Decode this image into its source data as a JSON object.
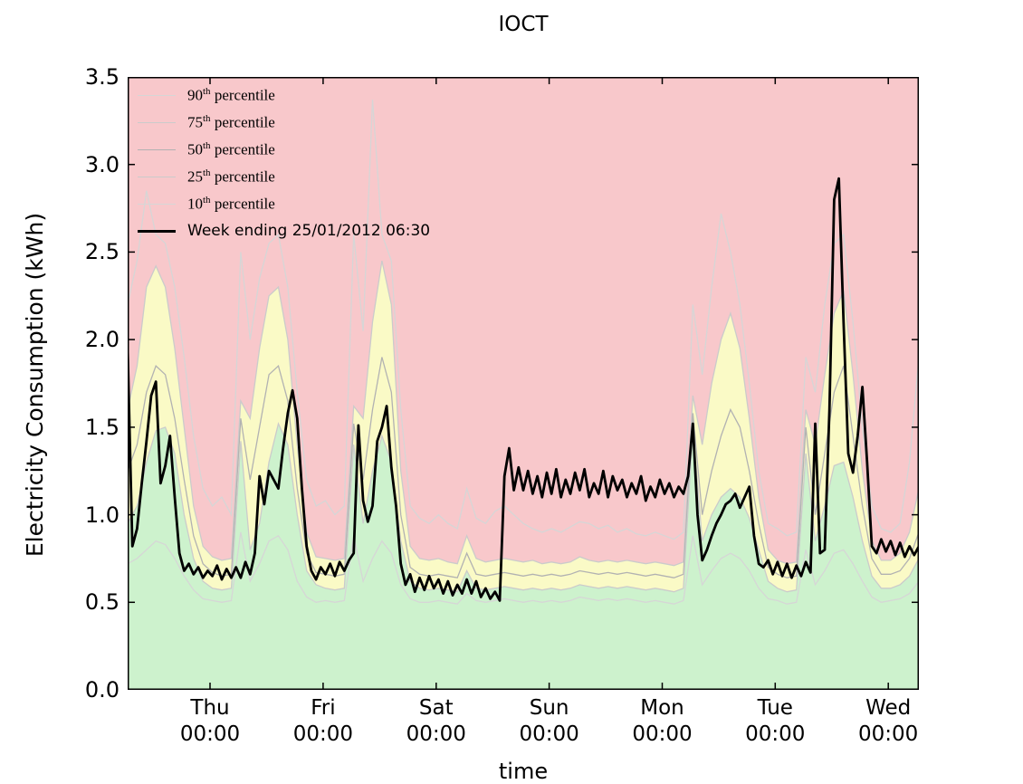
{
  "title": "IOCT",
  "axes": {
    "ylabel": "Electricity Consumption (kWh)",
    "xlabel": "time",
    "y_ticks": [
      {
        "v": 0.0,
        "label": "0.0"
      },
      {
        "v": 0.5,
        "label": "0.5"
      },
      {
        "v": 1.0,
        "label": "1.0"
      },
      {
        "v": 1.5,
        "label": "1.5"
      },
      {
        "v": 2.0,
        "label": "2.0"
      },
      {
        "v": 2.5,
        "label": "2.5"
      },
      {
        "v": 3.0,
        "label": "3.0"
      },
      {
        "v": 3.5,
        "label": "3.5"
      }
    ],
    "x_ticks": [
      {
        "t": 17.5,
        "day": "Thu",
        "time": "00:00"
      },
      {
        "t": 41.5,
        "day": "Fri",
        "time": "00:00"
      },
      {
        "t": 65.5,
        "day": "Sat",
        "time": "00:00"
      },
      {
        "t": 89.5,
        "day": "Sun",
        "time": "00:00"
      },
      {
        "t": 113.5,
        "day": "Mon",
        "time": "00:00"
      },
      {
        "t": 137.5,
        "day": "Tue",
        "time": "00:00"
      },
      {
        "t": 161.5,
        "day": "Wed",
        "time": "00:00"
      }
    ]
  },
  "legend": {
    "items": [
      {
        "num": "90",
        "sup": "th",
        "rest": " percentile",
        "color": "#d6d6d6",
        "line_width": 1.3
      },
      {
        "num": "75",
        "sup": "th",
        "rest": " percentile",
        "color": "#cbcbcb",
        "line_width": 1.3
      },
      {
        "num": "50",
        "sup": "th",
        "rest": " percentile",
        "color": "#b2b2b2",
        "line_width": 1.3
      },
      {
        "num": "25",
        "sup": "th",
        "rest": " percentile",
        "color": "#cbcbcb",
        "line_width": 1.3
      },
      {
        "num": "10",
        "sup": "th",
        "rest": " percentile",
        "color": "#d6d6d6",
        "line_width": 1.3
      },
      {
        "label": "Week ending 25/01/2012 06:30",
        "color": "#000000",
        "line_width": 3
      }
    ]
  },
  "colors": {
    "band_high": "#f8c8cb",
    "band_mid": "#fafac6",
    "band_low": "#cdf2cd",
    "p90_line": "#d6d6d6",
    "p75_line": "#cbcbcb",
    "p50_line": "#b2b2b2",
    "p25_line": "#cbcbcb",
    "p10_line": "#d6d6d6",
    "week_line": "#000000",
    "frame": "#000000"
  },
  "chart_data": {
    "type": "line",
    "title": "IOCT",
    "xlabel": "time",
    "ylabel": "Electricity Consumption (kWh)",
    "x_unit": "hours from Wed 06:30 to Wed 06:30 (one week)",
    "x_range": [
      0,
      168
    ],
    "ylim": [
      0.0,
      3.5
    ],
    "grid": false,
    "legend_position": "upper left",
    "bands": [
      {
        "name": "above 75th percentile",
        "between": [
          "p75",
          "ymax"
        ],
        "color": "#f8c8cb"
      },
      {
        "name": "25th to 75th percentile",
        "between": [
          "p25",
          "p75"
        ],
        "color": "#fafac6"
      },
      {
        "name": "below 25th percentile",
        "between": [
          "ymin",
          "p25"
        ],
        "color": "#cdf2cd"
      }
    ],
    "percentile_step_hours": 2,
    "series": [
      {
        "name": "90th percentile",
        "key": "p90",
        "color": "#d6d6d6",
        "values": [
          2.2,
          2.45,
          2.85,
          2.6,
          2.55,
          2.3,
          1.9,
          1.45,
          1.15,
          1.05,
          1.1,
          1.0,
          2.5,
          2.0,
          2.35,
          2.55,
          2.6,
          2.3,
          1.7,
          1.2,
          1.05,
          1.08,
          1.0,
          1.05,
          2.6,
          2.05,
          3.37,
          2.6,
          2.45,
          1.6,
          1.05,
          0.98,
          0.95,
          1.0,
          0.95,
          0.92,
          1.15,
          0.98,
          0.95,
          1.02,
          1.05,
          1.0,
          0.95,
          0.92,
          0.9,
          0.92,
          0.9,
          0.93,
          0.96,
          0.95,
          0.92,
          0.94,
          0.9,
          0.92,
          0.89,
          0.88,
          0.9,
          0.88,
          0.86,
          0.9,
          2.2,
          1.8,
          2.3,
          2.72,
          2.5,
          2.2,
          1.75,
          1.25,
          0.95,
          0.92,
          0.88,
          0.9,
          1.9,
          1.7,
          2.2,
          2.55,
          2.6,
          2.1,
          1.5,
          1.05,
          0.92,
          0.9,
          0.95,
          1.3,
          1.9
        ]
      },
      {
        "name": "75th percentile",
        "key": "p75",
        "color": "#cbcbcb",
        "values": [
          1.6,
          1.85,
          2.3,
          2.42,
          2.3,
          1.95,
          1.5,
          1.05,
          0.82,
          0.76,
          0.74,
          0.75,
          1.65,
          1.55,
          1.95,
          2.25,
          2.3,
          2.0,
          1.4,
          0.9,
          0.76,
          0.75,
          0.74,
          0.75,
          1.62,
          1.55,
          2.1,
          2.45,
          2.2,
          1.25,
          0.82,
          0.75,
          0.74,
          0.75,
          0.73,
          0.72,
          0.88,
          0.75,
          0.73,
          0.74,
          0.75,
          0.74,
          0.73,
          0.74,
          0.72,
          0.73,
          0.72,
          0.73,
          0.76,
          0.74,
          0.73,
          0.74,
          0.73,
          0.74,
          0.73,
          0.72,
          0.73,
          0.72,
          0.71,
          0.73,
          1.68,
          1.4,
          1.75,
          2.0,
          2.15,
          1.95,
          1.55,
          1.1,
          0.8,
          0.74,
          0.72,
          0.73,
          1.6,
          1.4,
          1.8,
          2.15,
          2.28,
          1.8,
          1.25,
          0.85,
          0.74,
          0.74,
          0.78,
          0.9,
          1.15
        ]
      },
      {
        "name": "50th percentile",
        "key": "p50",
        "color": "#b2b2b2",
        "values": [
          1.25,
          1.4,
          1.7,
          1.85,
          1.8,
          1.55,
          1.2,
          0.88,
          0.72,
          0.67,
          0.65,
          0.66,
          1.55,
          1.2,
          1.5,
          1.8,
          1.85,
          1.65,
          1.15,
          0.78,
          0.67,
          0.66,
          0.65,
          0.66,
          1.52,
          1.2,
          1.6,
          1.9,
          1.7,
          1.0,
          0.7,
          0.66,
          0.65,
          0.66,
          0.65,
          0.64,
          0.78,
          0.66,
          0.65,
          0.66,
          0.67,
          0.66,
          0.65,
          0.66,
          0.65,
          0.66,
          0.65,
          0.66,
          0.68,
          0.67,
          0.66,
          0.67,
          0.66,
          0.67,
          0.66,
          0.65,
          0.66,
          0.65,
          0.64,
          0.66,
          1.58,
          1.0,
          1.25,
          1.45,
          1.6,
          1.5,
          1.25,
          0.95,
          0.7,
          0.66,
          0.64,
          0.65,
          1.5,
          1.0,
          1.35,
          1.7,
          1.85,
          1.45,
          1.05,
          0.75,
          0.66,
          0.66,
          0.68,
          0.75,
          0.9
        ]
      },
      {
        "name": "25th percentile",
        "key": "p25",
        "color": "#cbcbcb",
        "values": [
          0.95,
          1.05,
          1.3,
          1.48,
          1.5,
          1.35,
          1.0,
          0.75,
          0.62,
          0.58,
          0.57,
          0.58,
          1.42,
          0.8,
          0.95,
          1.3,
          1.52,
          1.4,
          1.0,
          0.68,
          0.6,
          0.58,
          0.57,
          0.58,
          1.4,
          0.95,
          1.25,
          1.45,
          1.3,
          0.85,
          0.62,
          0.58,
          0.57,
          0.58,
          0.57,
          0.56,
          0.68,
          0.58,
          0.57,
          0.58,
          0.59,
          0.58,
          0.57,
          0.58,
          0.57,
          0.58,
          0.57,
          0.58,
          0.6,
          0.59,
          0.58,
          0.59,
          0.58,
          0.59,
          0.58,
          0.57,
          0.58,
          0.57,
          0.56,
          0.58,
          1.5,
          0.85,
          1.0,
          1.1,
          1.15,
          1.1,
          0.98,
          0.8,
          0.62,
          0.58,
          0.56,
          0.57,
          1.35,
          0.85,
          1.05,
          1.28,
          1.3,
          1.1,
          0.85,
          0.65,
          0.58,
          0.58,
          0.6,
          0.65,
          0.75
        ]
      },
      {
        "name": "10th percentile",
        "key": "p10",
        "color": "#d6d6d6",
        "values": [
          0.72,
          0.75,
          0.8,
          0.85,
          0.83,
          0.75,
          0.65,
          0.57,
          0.52,
          0.51,
          0.5,
          0.51,
          0.9,
          0.62,
          0.72,
          0.85,
          0.88,
          0.8,
          0.62,
          0.53,
          0.5,
          0.51,
          0.5,
          0.51,
          0.88,
          0.62,
          0.75,
          0.85,
          0.78,
          0.6,
          0.52,
          0.5,
          0.5,
          0.51,
          0.5,
          0.49,
          0.55,
          0.51,
          0.5,
          0.51,
          0.52,
          0.51,
          0.5,
          0.51,
          0.5,
          0.51,
          0.5,
          0.51,
          0.53,
          0.52,
          0.51,
          0.52,
          0.51,
          0.52,
          0.51,
          0.5,
          0.51,
          0.5,
          0.49,
          0.51,
          0.88,
          0.6,
          0.68,
          0.75,
          0.78,
          0.75,
          0.68,
          0.58,
          0.52,
          0.51,
          0.49,
          0.5,
          0.8,
          0.6,
          0.68,
          0.78,
          0.8,
          0.72,
          0.62,
          0.53,
          0.5,
          0.51,
          0.52,
          0.55,
          0.62
        ]
      }
    ],
    "week_line": {
      "name": "Week ending 25/01/2012 06:30",
      "color": "#000000",
      "step_hours": 1,
      "values": [
        1.95,
        0.82,
        0.92,
        1.18,
        1.42,
        1.68,
        1.76,
        1.18,
        1.28,
        1.45,
        1.1,
        0.78,
        0.68,
        0.72,
        0.66,
        0.7,
        0.64,
        0.68,
        0.65,
        0.71,
        0.63,
        0.69,
        0.64,
        0.7,
        0.64,
        0.73,
        0.66,
        0.78,
        1.22,
        1.06,
        1.25,
        1.2,
        1.15,
        1.38,
        1.58,
        1.71,
        1.55,
        1.15,
        0.82,
        0.68,
        0.63,
        0.7,
        0.66,
        0.72,
        0.65,
        0.73,
        0.68,
        0.74,
        0.78,
        1.51,
        1.08,
        0.96,
        1.05,
        1.42,
        1.5,
        1.62,
        1.27,
        1.05,
        0.72,
        0.6,
        0.66,
        0.56,
        0.64,
        0.57,
        0.65,
        0.58,
        0.63,
        0.55,
        0.62,
        0.54,
        0.6,
        0.55,
        0.63,
        0.55,
        0.62,
        0.53,
        0.58,
        0.52,
        0.56,
        0.51,
        1.22,
        1.38,
        1.14,
        1.27,
        1.14,
        1.25,
        1.12,
        1.22,
        1.1,
        1.24,
        1.12,
        1.26,
        1.1,
        1.2,
        1.12,
        1.24,
        1.14,
        1.26,
        1.1,
        1.18,
        1.12,
        1.25,
        1.1,
        1.22,
        1.14,
        1.2,
        1.1,
        1.18,
        1.12,
        1.22,
        1.08,
        1.16,
        1.1,
        1.2,
        1.12,
        1.18,
        1.1,
        1.16,
        1.12,
        1.22,
        1.52,
        1.0,
        0.74,
        0.8,
        0.88,
        0.95,
        1.0,
        1.06,
        1.08,
        1.12,
        1.04,
        1.1,
        1.16,
        0.88,
        0.72,
        0.7,
        0.74,
        0.66,
        0.73,
        0.65,
        0.72,
        0.64,
        0.71,
        0.65,
        0.73,
        0.67,
        1.52,
        0.78,
        0.8,
        1.6,
        2.8,
        2.92,
        2.1,
        1.35,
        1.24,
        1.45,
        1.73,
        1.3,
        0.82,
        0.78,
        0.86,
        0.79,
        0.85,
        0.77,
        0.84,
        0.76,
        0.82,
        0.77,
        0.82
      ]
    }
  }
}
